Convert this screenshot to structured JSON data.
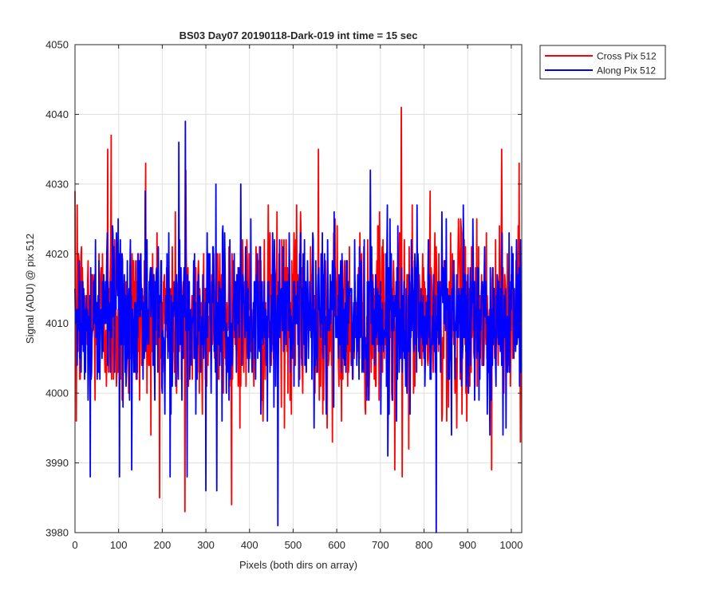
{
  "chart_data": {
    "type": "line",
    "title": "BS03 Day07 20190118-Dark-019 int time = 15 sec",
    "xlabel": "Pixels (both dirs on array)",
    "ylabel": "Signal (ADU) @ pix 512",
    "xlim": [
      0,
      1024
    ],
    "ylim": [
      3980,
      4050
    ],
    "xticks": [
      0,
      100,
      200,
      300,
      400,
      500,
      600,
      700,
      800,
      900,
      1000
    ],
    "yticks": [
      3980,
      3990,
      4000,
      4010,
      4020,
      4030,
      4040,
      4050
    ],
    "grid": true,
    "legend_position": "outside top-right",
    "series": [
      {
        "name": "Cross Pix 512",
        "color": "#ff0000",
        "x_start": 0,
        "x_step": 1,
        "count": 1024,
        "mean": 4011,
        "std": 6.5,
        "min": 3983,
        "max": 4041,
        "spikes": [
          {
            "x": 5,
            "y": 4027
          },
          {
            "x": 3,
            "y": 3996
          },
          {
            "x": 75,
            "y": 4035
          },
          {
            "x": 83,
            "y": 4037
          },
          {
            "x": 162,
            "y": 4033
          },
          {
            "x": 252,
            "y": 3983
          },
          {
            "x": 254,
            "y": 4032
          },
          {
            "x": 558,
            "y": 4035
          },
          {
            "x": 590,
            "y": 3993
          },
          {
            "x": 733,
            "y": 3989
          },
          {
            "x": 748,
            "y": 4041
          },
          {
            "x": 750,
            "y": 3988
          },
          {
            "x": 955,
            "y": 3989
          },
          {
            "x": 978,
            "y": 4035
          },
          {
            "x": 1018,
            "y": 4033
          }
        ]
      },
      {
        "name": "Along Pix 512",
        "color": "#0000ff",
        "x_start": 0,
        "x_step": 1,
        "count": 1024,
        "mean": 4011,
        "std": 6.0,
        "min": 3980,
        "max": 4039,
        "spikes": [
          {
            "x": 35,
            "y": 3988
          },
          {
            "x": 102,
            "y": 3988
          },
          {
            "x": 130,
            "y": 3989
          },
          {
            "x": 218,
            "y": 3988
          },
          {
            "x": 238,
            "y": 4036
          },
          {
            "x": 253,
            "y": 4039
          },
          {
            "x": 257,
            "y": 3988
          },
          {
            "x": 300,
            "y": 3986
          },
          {
            "x": 325,
            "y": 3986
          },
          {
            "x": 465,
            "y": 3981
          },
          {
            "x": 828,
            "y": 3980
          },
          {
            "x": 380,
            "y": 4030
          }
        ]
      }
    ]
  }
}
